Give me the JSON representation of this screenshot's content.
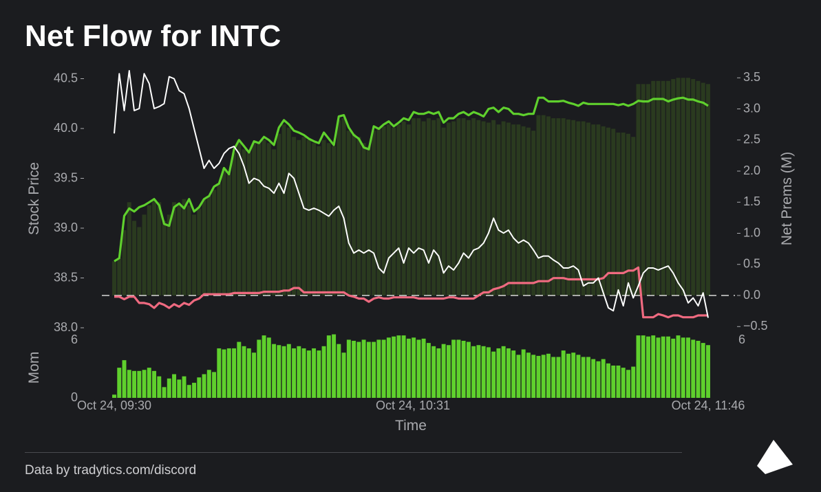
{
  "title": "Net Flow for INTC",
  "footer": "Data by tradytics.com/discord",
  "colors": {
    "background": "#1b1c1f",
    "call_line": "#5fd02d",
    "put_line": "#ef6a80",
    "price_line": "#ffffff",
    "bars": "#2a3a1f",
    "mom_bars": "#5fd02d",
    "axis_text": "#a9aaae"
  },
  "chart_data": {
    "type": "line",
    "xlabel": "Time",
    "x_ticks": [
      "Oct 24, 09:30",
      "Oct 24, 10:31",
      "Oct 24, 11:46"
    ],
    "left_axis": {
      "label": "Stock Price",
      "ticks": [
        "40.5",
        "40.0",
        "39.5",
        "39.0",
        "38.5",
        "38.0"
      ],
      "ylim": [
        38.0,
        40.6
      ]
    },
    "right_axis": {
      "label": "Net Prems (M)",
      "ticks": [
        "3.5",
        "3.0",
        "2.5",
        "2.0",
        "1.5",
        "1.0",
        "0.5",
        "0.0",
        "−0.5"
      ],
      "ylim": [
        -0.5,
        3.5
      ]
    },
    "mom_axis": {
      "label": "Mom",
      "left_ticks": [
        "6",
        "0"
      ],
      "right_ticks": [
        "6"
      ],
      "ylim": [
        0,
        6
      ]
    },
    "n_points": 120,
    "price": [
      [
        0,
        39.95
      ],
      [
        1,
        40.55
      ],
      [
        2,
        40.18
      ],
      [
        3,
        40.58
      ],
      [
        4,
        40.18
      ],
      [
        5,
        40.2
      ],
      [
        6,
        40.55
      ],
      [
        7,
        40.45
      ],
      [
        8,
        40.2
      ],
      [
        9,
        40.22
      ],
      [
        10,
        40.25
      ],
      [
        11,
        40.52
      ],
      [
        12,
        40.5
      ],
      [
        13,
        40.38
      ],
      [
        14,
        40.35
      ],
      [
        15,
        40.2
      ],
      [
        16,
        40.0
      ],
      [
        17,
        39.8
      ],
      [
        18,
        39.6
      ],
      [
        19,
        39.68
      ],
      [
        20,
        39.6
      ],
      [
        21,
        39.65
      ],
      [
        22,
        39.75
      ],
      [
        23,
        39.8
      ],
      [
        24,
        39.82
      ],
      [
        25,
        39.75
      ],
      [
        26,
        39.62
      ],
      [
        27,
        39.45
      ],
      [
        28,
        39.5
      ],
      [
        29,
        39.48
      ],
      [
        30,
        39.42
      ],
      [
        31,
        39.4
      ],
      [
        32,
        39.35
      ],
      [
        33,
        39.45
      ],
      [
        34,
        39.35
      ],
      [
        35,
        39.55
      ],
      [
        36,
        39.5
      ],
      [
        37,
        39.35
      ],
      [
        38,
        39.2
      ],
      [
        39,
        39.18
      ],
      [
        40,
        39.2
      ],
      [
        41,
        39.18
      ],
      [
        42,
        39.15
      ],
      [
        43,
        39.12
      ],
      [
        44,
        39.18
      ],
      [
        45,
        39.22
      ],
      [
        46,
        39.1
      ],
      [
        47,
        38.85
      ],
      [
        48,
        38.75
      ],
      [
        49,
        38.78
      ],
      [
        50,
        38.75
      ],
      [
        51,
        38.78
      ],
      [
        52,
        38.75
      ],
      [
        53,
        38.6
      ],
      [
        54,
        38.55
      ],
      [
        55,
        38.7
      ],
      [
        56,
        38.75
      ],
      [
        57,
        38.8
      ],
      [
        58,
        38.65
      ],
      [
        59,
        38.8
      ],
      [
        60,
        38.75
      ],
      [
        61,
        38.8
      ],
      [
        62,
        38.78
      ],
      [
        63,
        38.65
      ],
      [
        64,
        38.78
      ],
      [
        65,
        38.72
      ],
      [
        66,
        38.55
      ],
      [
        67,
        38.62
      ],
      [
        68,
        38.58
      ],
      [
        69,
        38.65
      ],
      [
        70,
        38.75
      ],
      [
        71,
        38.7
      ],
      [
        72,
        38.78
      ],
      [
        73,
        38.8
      ],
      [
        74,
        38.85
      ],
      [
        75,
        38.95
      ],
      [
        76,
        39.1
      ],
      [
        77,
        38.98
      ],
      [
        78,
        38.95
      ],
      [
        79,
        38.98
      ],
      [
        80,
        38.9
      ],
      [
        81,
        38.85
      ],
      [
        82,
        38.88
      ],
      [
        83,
        38.85
      ],
      [
        84,
        38.78
      ],
      [
        85,
        38.7
      ],
      [
        86,
        38.72
      ],
      [
        87,
        38.72
      ],
      [
        88,
        38.68
      ],
      [
        89,
        38.65
      ],
      [
        90,
        38.6
      ],
      [
        91,
        38.6
      ],
      [
        92,
        38.62
      ],
      [
        93,
        38.58
      ],
      [
        94,
        38.42
      ],
      [
        95,
        38.45
      ],
      [
        96,
        38.45
      ],
      [
        97,
        38.5
      ],
      [
        98,
        38.35
      ],
      [
        99,
        38.2
      ],
      [
        100,
        38.17
      ],
      [
        101,
        38.38
      ],
      [
        102,
        38.22
      ],
      [
        103,
        38.45
      ],
      [
        104,
        38.3
      ],
      [
        105,
        38.42
      ],
      [
        106,
        38.55
      ],
      [
        107,
        38.6
      ],
      [
        108,
        38.6
      ],
      [
        109,
        38.58
      ],
      [
        110,
        38.6
      ],
      [
        111,
        38.62
      ],
      [
        112,
        38.55
      ],
      [
        113,
        38.45
      ],
      [
        114,
        38.38
      ],
      [
        115,
        38.25
      ],
      [
        116,
        38.3
      ],
      [
        117,
        38.22
      ],
      [
        118,
        38.35
      ],
      [
        119,
        38.1
      ]
    ],
    "calls": [
      [
        0,
        0.55
      ],
      [
        1,
        0.6
      ],
      [
        2,
        1.28
      ],
      [
        3,
        1.4
      ],
      [
        4,
        1.35
      ],
      [
        5,
        1.42
      ],
      [
        6,
        1.45
      ],
      [
        7,
        1.5
      ],
      [
        8,
        1.55
      ],
      [
        9,
        1.45
      ],
      [
        10,
        1.15
      ],
      [
        11,
        1.12
      ],
      [
        12,
        1.42
      ],
      [
        13,
        1.48
      ],
      [
        14,
        1.4
      ],
      [
        15,
        1.55
      ],
      [
        16,
        1.35
      ],
      [
        17,
        1.42
      ],
      [
        18,
        1.55
      ],
      [
        19,
        1.6
      ],
      [
        20,
        1.75
      ],
      [
        21,
        1.8
      ],
      [
        22,
        2.05
      ],
      [
        23,
        1.95
      ],
      [
        24,
        2.35
      ],
      [
        25,
        2.5
      ],
      [
        26,
        2.4
      ],
      [
        27,
        2.3
      ],
      [
        28,
        2.48
      ],
      [
        29,
        2.45
      ],
      [
        30,
        2.55
      ],
      [
        31,
        2.5
      ],
      [
        32,
        2.42
      ],
      [
        33,
        2.7
      ],
      [
        34,
        2.82
      ],
      [
        35,
        2.75
      ],
      [
        36,
        2.65
      ],
      [
        37,
        2.62
      ],
      [
        38,
        2.58
      ],
      [
        39,
        2.52
      ],
      [
        40,
        2.48
      ],
      [
        41,
        2.45
      ],
      [
        42,
        2.62
      ],
      [
        43,
        2.52
      ],
      [
        44,
        2.42
      ],
      [
        45,
        2.88
      ],
      [
        46,
        2.9
      ],
      [
        47,
        2.7
      ],
      [
        48,
        2.58
      ],
      [
        49,
        2.52
      ],
      [
        50,
        2.38
      ],
      [
        51,
        2.35
      ],
      [
        52,
        2.72
      ],
      [
        53,
        2.68
      ],
      [
        54,
        2.75
      ],
      [
        55,
        2.8
      ],
      [
        56,
        2.72
      ],
      [
        57,
        2.78
      ],
      [
        58,
        2.85
      ],
      [
        59,
        2.82
      ],
      [
        60,
        2.95
      ],
      [
        61,
        2.92
      ],
      [
        62,
        2.92
      ],
      [
        63,
        2.95
      ],
      [
        64,
        2.92
      ],
      [
        65,
        2.95
      ],
      [
        66,
        2.78
      ],
      [
        67,
        2.85
      ],
      [
        68,
        2.85
      ],
      [
        69,
        2.92
      ],
      [
        70,
        2.95
      ],
      [
        71,
        2.9
      ],
      [
        72,
        2.95
      ],
      [
        73,
        2.92
      ],
      [
        74,
        2.88
      ],
      [
        75,
        3.0
      ],
      [
        76,
        3.02
      ],
      [
        77,
        2.95
      ],
      [
        78,
        3.02
      ],
      [
        79,
        3.0
      ],
      [
        80,
        2.92
      ],
      [
        81,
        2.92
      ],
      [
        82,
        2.9
      ],
      [
        83,
        2.92
      ],
      [
        84,
        2.92
      ],
      [
        85,
        3.18
      ],
      [
        86,
        3.18
      ],
      [
        87,
        3.12
      ],
      [
        88,
        3.12
      ],
      [
        89,
        3.12
      ],
      [
        90,
        3.13
      ],
      [
        91,
        3.1
      ],
      [
        92,
        3.08
      ],
      [
        93,
        3.05
      ],
      [
        94,
        3.1
      ],
      [
        95,
        3.08
      ],
      [
        96,
        3.08
      ],
      [
        97,
        3.08
      ],
      [
        98,
        3.08
      ],
      [
        99,
        3.08
      ],
      [
        100,
        3.08
      ],
      [
        101,
        3.06
      ],
      [
        102,
        3.08
      ],
      [
        103,
        3.05
      ],
      [
        104,
        3.08
      ],
      [
        105,
        3.13
      ],
      [
        106,
        3.12
      ],
      [
        107,
        3.12
      ],
      [
        108,
        3.16
      ],
      [
        109,
        3.16
      ],
      [
        110,
        3.16
      ],
      [
        111,
        3.12
      ],
      [
        112,
        3.15
      ],
      [
        113,
        3.17
      ],
      [
        114,
        3.18
      ],
      [
        115,
        3.15
      ],
      [
        116,
        3.15
      ],
      [
        117,
        3.12
      ],
      [
        118,
        3.1
      ],
      [
        119,
        3.05
      ]
    ],
    "puts": [
      [
        0,
        -0.02
      ],
      [
        1,
        -0.02
      ],
      [
        2,
        -0.06
      ],
      [
        3,
        -0.02
      ],
      [
        4,
        -0.02
      ],
      [
        5,
        -0.12
      ],
      [
        6,
        -0.12
      ],
      [
        7,
        -0.14
      ],
      [
        8,
        -0.2
      ],
      [
        9,
        -0.12
      ],
      [
        10,
        -0.15
      ],
      [
        11,
        -0.2
      ],
      [
        12,
        -0.14
      ],
      [
        13,
        -0.18
      ],
      [
        14,
        -0.12
      ],
      [
        15,
        -0.15
      ],
      [
        16,
        -0.08
      ],
      [
        17,
        -0.05
      ],
      [
        18,
        0.02
      ],
      [
        19,
        0.02
      ],
      [
        20,
        0.02
      ],
      [
        21,
        0.02
      ],
      [
        22,
        0.02
      ],
      [
        23,
        0.02
      ],
      [
        24,
        0.04
      ],
      [
        25,
        0.04
      ],
      [
        26,
        0.04
      ],
      [
        27,
        0.04
      ],
      [
        28,
        0.04
      ],
      [
        29,
        0.04
      ],
      [
        30,
        0.06
      ],
      [
        31,
        0.06
      ],
      [
        32,
        0.06
      ],
      [
        33,
        0.06
      ],
      [
        34,
        0.08
      ],
      [
        35,
        0.08
      ],
      [
        36,
        0.12
      ],
      [
        37,
        0.12
      ],
      [
        38,
        0.05
      ],
      [
        39,
        0.05
      ],
      [
        40,
        0.05
      ],
      [
        41,
        0.05
      ],
      [
        42,
        0.05
      ],
      [
        43,
        0.05
      ],
      [
        44,
        0.05
      ],
      [
        45,
        0.05
      ],
      [
        46,
        0.05
      ],
      [
        47,
        0.0
      ],
      [
        48,
        -0.02
      ],
      [
        49,
        -0.05
      ],
      [
        50,
        -0.05
      ],
      [
        51,
        -0.1
      ],
      [
        52,
        -0.05
      ],
      [
        53,
        -0.03
      ],
      [
        54,
        -0.05
      ],
      [
        55,
        -0.05
      ],
      [
        56,
        -0.03
      ],
      [
        57,
        -0.03
      ],
      [
        58,
        -0.03
      ],
      [
        59,
        -0.03
      ],
      [
        60,
        -0.03
      ],
      [
        61,
        -0.05
      ],
      [
        62,
        -0.05
      ],
      [
        63,
        -0.05
      ],
      [
        64,
        -0.05
      ],
      [
        65,
        -0.05
      ],
      [
        66,
        -0.05
      ],
      [
        67,
        -0.03
      ],
      [
        68,
        -0.03
      ],
      [
        69,
        -0.05
      ],
      [
        70,
        -0.05
      ],
      [
        71,
        -0.05
      ],
      [
        72,
        -0.05
      ],
      [
        73,
        0.0
      ],
      [
        74,
        0.05
      ],
      [
        75,
        0.05
      ],
      [
        76,
        0.1
      ],
      [
        77,
        0.12
      ],
      [
        78,
        0.15
      ],
      [
        79,
        0.2
      ],
      [
        80,
        0.2
      ],
      [
        81,
        0.2
      ],
      [
        82,
        0.2
      ],
      [
        83,
        0.2
      ],
      [
        84,
        0.2
      ],
      [
        85,
        0.23
      ],
      [
        86,
        0.23
      ],
      [
        87,
        0.23
      ],
      [
        88,
        0.28
      ],
      [
        89,
        0.28
      ],
      [
        90,
        0.28
      ],
      [
        91,
        0.26
      ],
      [
        92,
        0.26
      ],
      [
        93,
        0.26
      ],
      [
        94,
        0.26
      ],
      [
        95,
        0.26
      ],
      [
        96,
        0.26
      ],
      [
        97,
        0.26
      ],
      [
        98,
        0.28
      ],
      [
        99,
        0.36
      ],
      [
        100,
        0.36
      ],
      [
        101,
        0.36
      ],
      [
        102,
        0.36
      ],
      [
        103,
        0.4
      ],
      [
        104,
        0.4
      ],
      [
        105,
        0.45
      ],
      [
        106,
        -0.35
      ],
      [
        107,
        -0.35
      ],
      [
        108,
        -0.35
      ],
      [
        109,
        -0.3
      ],
      [
        110,
        -0.32
      ],
      [
        111,
        -0.35
      ],
      [
        112,
        -0.32
      ],
      [
        113,
        -0.32
      ],
      [
        114,
        -0.35
      ],
      [
        115,
        -0.35
      ],
      [
        116,
        -0.35
      ],
      [
        117,
        -0.32
      ],
      [
        118,
        -0.32
      ],
      [
        119,
        -0.32
      ]
    ],
    "net_bars": [
      0.55,
      0.6,
      1.05,
      1.5,
      1.2,
      1.1,
      1.3,
      1.45,
      1.55,
      1.5,
      1.2,
      1.3,
      1.5,
      1.45,
      1.55,
      1.45,
      1.3,
      1.4,
      1.55,
      1.6,
      1.7,
      1.8,
      2.05,
      1.95,
      2.3,
      2.5,
      2.35,
      2.3,
      2.45,
      2.45,
      2.5,
      2.45,
      2.35,
      2.6,
      2.75,
      2.7,
      2.55,
      2.5,
      2.55,
      2.5,
      2.45,
      2.4,
      2.5,
      2.45,
      2.4,
      2.82,
      2.85,
      2.65,
      2.6,
      2.55,
      2.45,
      2.4,
      2.65,
      2.7,
      2.72,
      2.75,
      2.7,
      2.75,
      2.8,
      2.75,
      2.85,
      2.85,
      2.8,
      2.85,
      2.82,
      2.85,
      2.7,
      2.78,
      2.8,
      2.85,
      2.85,
      2.82,
      2.85,
      2.82,
      2.8,
      2.78,
      2.82,
      2.75,
      2.8,
      2.78,
      2.75,
      2.75,
      2.72,
      2.7,
      2.65,
      2.9,
      2.9,
      2.88,
      2.85,
      2.85,
      2.85,
      2.83,
      2.82,
      2.8,
      2.8,
      2.78,
      2.75,
      2.75,
      2.72,
      2.7,
      2.68,
      2.62,
      2.62,
      2.6,
      2.55,
      3.4,
      3.4,
      3.4,
      3.45,
      3.45,
      3.45,
      3.45,
      3.48,
      3.5,
      3.5,
      3.5,
      3.48,
      3.45,
      3.42,
      3.4
    ],
    "mom": [
      0.3,
      2.8,
      3.5,
      2.6,
      2.5,
      2.5,
      2.6,
      2.8,
      2.5,
      2.0,
      1.0,
      1.8,
      2.2,
      1.7,
      2.0,
      1.2,
      1.4,
      1.9,
      2.2,
      2.6,
      2.4,
      4.6,
      4.5,
      4.6,
      4.6,
      5.2,
      4.8,
      4.6,
      4.2,
      5.4,
      5.8,
      5.6,
      5.0,
      4.9,
      4.8,
      5.0,
      4.6,
      4.8,
      4.6,
      4.4,
      4.6,
      4.4,
      4.8,
      5.8,
      5.9,
      5.0,
      4.2,
      5.4,
      5.3,
      5.2,
      5.4,
      5.2,
      5.2,
      5.4,
      5.4,
      5.6,
      5.7,
      5.8,
      5.8,
      5.5,
      5.6,
      5.4,
      5.5,
      5.1,
      4.8,
      4.6,
      5.0,
      4.9,
      5.4,
      5.4,
      5.3,
      5.2,
      4.8,
      4.9,
      4.8,
      4.7,
      4.3,
      4.6,
      4.8,
      4.6,
      4.4,
      4.0,
      4.5,
      4.2,
      4.0,
      3.9,
      4.0,
      4.1,
      3.8,
      3.8,
      4.4,
      4.1,
      4.2,
      4.0,
      3.8,
      3.8,
      3.6,
      3.4,
      3.6,
      3.2,
      3.0,
      3.0,
      2.8,
      2.6,
      2.9,
      5.8,
      5.8,
      5.7,
      5.8,
      5.6,
      5.7,
      5.7,
      5.5,
      5.8,
      5.6,
      5.6,
      5.4,
      5.3,
      5.1,
      4.9
    ]
  }
}
